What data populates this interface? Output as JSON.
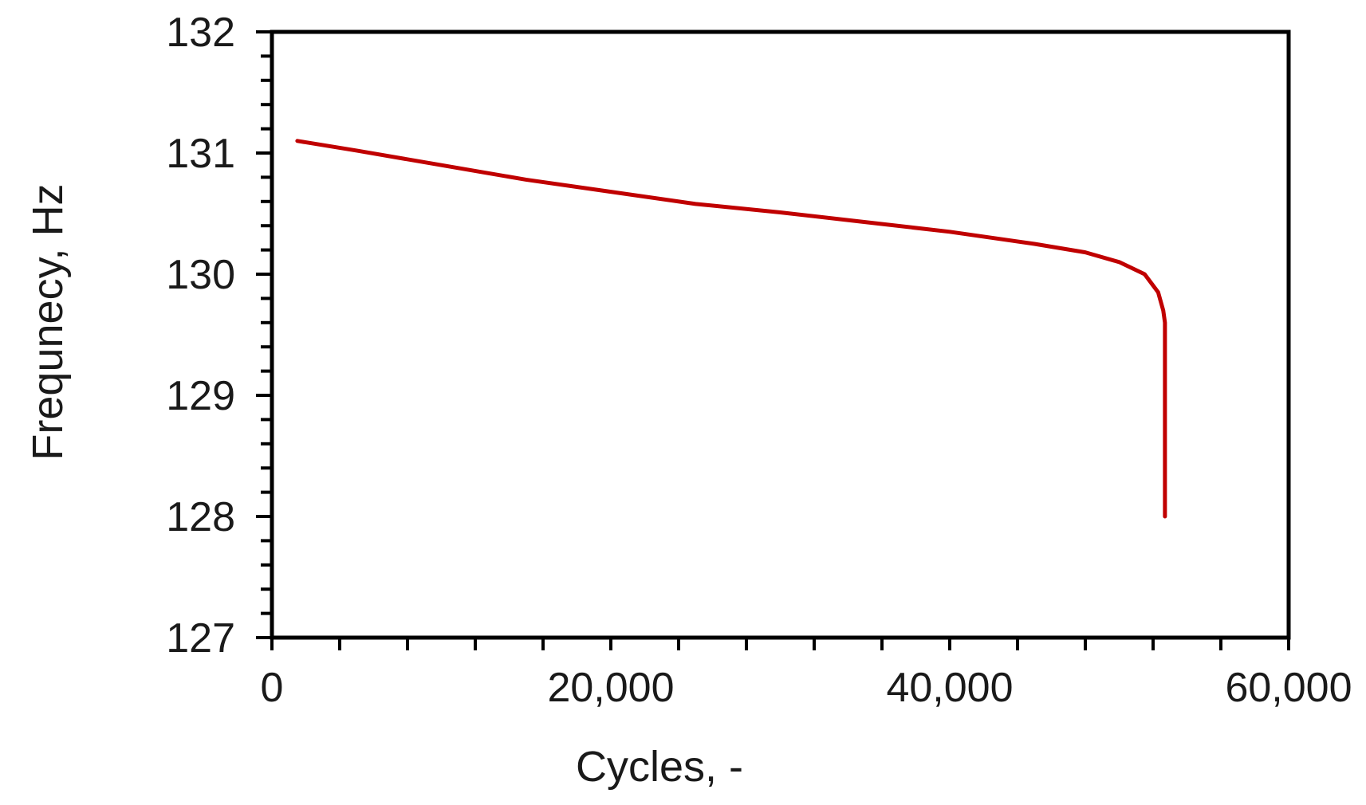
{
  "chart_data": {
    "type": "line",
    "title": "",
    "xlabel": "Cycles, -",
    "ylabel": "Frequnecy, Hz",
    "xlim": [
      0,
      60000
    ],
    "ylim": [
      127,
      132
    ],
    "x_ticks": [
      {
        "value": 0,
        "label": "0"
      },
      {
        "value": 20000,
        "label": "20,000"
      },
      {
        "value": 40000,
        "label": "40,000"
      },
      {
        "value": 60000,
        "label": "60,000"
      }
    ],
    "x_minor_tick_step": 4000,
    "y_ticks": [
      {
        "value": 127,
        "label": "127"
      },
      {
        "value": 128,
        "label": "128"
      },
      {
        "value": 129,
        "label": "129"
      },
      {
        "value": 130,
        "label": "130"
      },
      {
        "value": 131,
        "label": "131"
      },
      {
        "value": 132,
        "label": "132"
      }
    ],
    "y_minor_tick_step": 0.2,
    "grid": false,
    "legend": "none",
    "colors": {
      "line": "#C00000",
      "axis": "#000000",
      "text": "#1A1A1A",
      "background": "#FFFFFF"
    },
    "series": [
      {
        "name": "frequency-vs-cycles",
        "color": "#C00000",
        "points": [
          [
            1500,
            131.1
          ],
          [
            5000,
            131.02
          ],
          [
            10000,
            130.9
          ],
          [
            15000,
            130.78
          ],
          [
            20000,
            130.68
          ],
          [
            25000,
            130.58
          ],
          [
            30000,
            130.51
          ],
          [
            35000,
            130.43
          ],
          [
            40000,
            130.35
          ],
          [
            45000,
            130.25
          ],
          [
            48000,
            130.18
          ],
          [
            50000,
            130.1
          ],
          [
            51500,
            130.0
          ],
          [
            52300,
            129.85
          ],
          [
            52600,
            129.7
          ],
          [
            52700,
            129.6
          ],
          [
            52700,
            128.0
          ]
        ]
      }
    ]
  }
}
